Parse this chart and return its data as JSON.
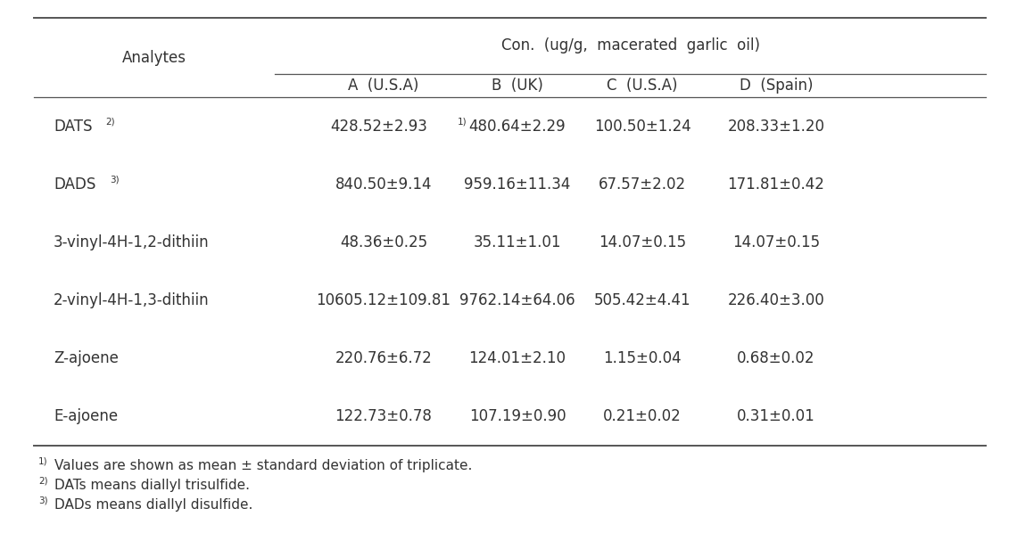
{
  "title": "Con.  (ug/g,  macerated  garlic  oil)",
  "col_headers": [
    "A  (U.S.A)",
    "B  (UK)",
    "C  (U.S.A)",
    "D  (Spain)"
  ],
  "row_labels_plain": [
    "DATS",
    "DADS",
    "3-vinyl-4H-1,2-dithiin",
    "2-vinyl-4H-1,3-dithiin",
    "Z-ajoene",
    "E-ajoene"
  ],
  "row_superscripts": [
    "2)",
    "3)",
    "",
    "",
    "",
    ""
  ],
  "data_display": [
    [
      "428.52±2.93",
      "480.64±2.29",
      "100.50±1.24",
      "208.33±1.20"
    ],
    [
      "840.50±9.14",
      "959.16±11.34",
      "67.57±2.02",
      "171.81±0.42"
    ],
    [
      "48.36±0.25",
      "35.11±1.01",
      "14.07±0.15",
      "14.07±0.15"
    ],
    [
      "10605.12±109.81",
      "9762.14±64.06",
      "505.42±4.41",
      "226.40±3.00"
    ],
    [
      "220.76±6.72",
      "124.01±2.10",
      "1.15±0.04",
      "0.68±0.02"
    ],
    [
      "122.73±0.78",
      "107.19±0.90",
      "0.21±0.02",
      "0.31±0.01"
    ]
  ],
  "first_cell_sup": "1)",
  "footnotes_sup": [
    "1)",
    "2)",
    "3)"
  ],
  "footnotes_text": [
    "Values are shown as mean ± standard deviation of triplicate.",
    "DATs means diallyl trisulfide.",
    "DADs means diallyl disulfide."
  ],
  "bg_color": "#ffffff",
  "text_color": "#333333",
  "line_color": "#555555",
  "font_size": 12,
  "sup_font_size": 7.5
}
